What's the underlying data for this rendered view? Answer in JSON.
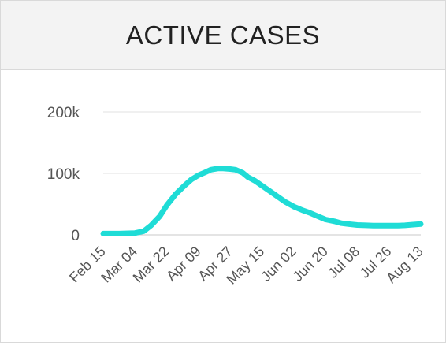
{
  "header": {
    "title": "ACTIVE CASES"
  },
  "colors": {
    "series": "#1fdcd6",
    "grid": "#e2e2e2",
    "axis": "#c9c9c9",
    "text": "#555555"
  },
  "chart_data": {
    "type": "line",
    "title": "ACTIVE CASES",
    "xlabel": "",
    "ylabel": "",
    "ylim": [
      0,
      200000
    ],
    "yticks": [
      0,
      100000,
      200000
    ],
    "ytick_labels": [
      "0",
      "100k",
      "200k"
    ],
    "xtick_labels": [
      "Feb 15",
      "Mar 04",
      "Mar 22",
      "Apr 09",
      "Apr 27",
      "May 15",
      "Jun 02",
      "Jun 20",
      "Jul 08",
      "Jul 26",
      "Aug 13"
    ],
    "xtick_dates": [
      "2020-02-15",
      "2020-03-04",
      "2020-03-22",
      "2020-04-09",
      "2020-04-27",
      "2020-05-15",
      "2020-06-02",
      "2020-06-20",
      "2020-07-08",
      "2020-07-26",
      "2020-08-13"
    ],
    "grid": true,
    "legend": "none",
    "series": [
      {
        "x": [
          "2020-02-15",
          "2020-02-24",
          "2020-03-04",
          "2020-03-09",
          "2020-03-13",
          "2020-03-18",
          "2020-03-22",
          "2020-03-27",
          "2020-04-01",
          "2020-04-05",
          "2020-04-09",
          "2020-04-13",
          "2020-04-16",
          "2020-04-20",
          "2020-04-23",
          "2020-04-27",
          "2020-04-30",
          "2020-05-04",
          "2020-05-07",
          "2020-05-11",
          "2020-05-15",
          "2020-05-20",
          "2020-05-24",
          "2020-05-28",
          "2020-06-02",
          "2020-06-07",
          "2020-06-11",
          "2020-06-15",
          "2020-06-20",
          "2020-06-25",
          "2020-06-29",
          "2020-07-03",
          "2020-07-08",
          "2020-07-13",
          "2020-07-17",
          "2020-07-21",
          "2020-07-26",
          "2020-07-31",
          "2020-08-04",
          "2020-08-08",
          "2020-08-13"
        ],
        "y": [
          2000,
          2000,
          3000,
          6000,
          15000,
          30000,
          48000,
          66000,
          80000,
          90000,
          97000,
          102000,
          106000,
          108000,
          108000,
          107000,
          106000,
          101000,
          94000,
          88000,
          80000,
          70000,
          62000,
          54000,
          46000,
          40000,
          36000,
          31000,
          25000,
          22000,
          19000,
          17500,
          16000,
          15500,
          15000,
          15000,
          15000,
          15000,
          15500,
          16500,
          17500
        ]
      }
    ]
  }
}
